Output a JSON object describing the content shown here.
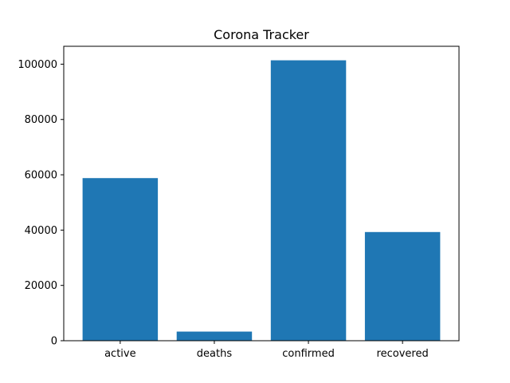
{
  "chart_data": {
    "type": "bar",
    "title": "Corona Tracker",
    "xlabel": "",
    "ylabel": "",
    "categories": [
      "active",
      "deaths",
      "confirmed",
      "recovered"
    ],
    "values": [
      58800,
      3300,
      101400,
      39300
    ],
    "ylim": [
      0,
      106470
    ],
    "yticks": [
      0,
      20000,
      40000,
      60000,
      80000,
      100000
    ],
    "ytick_labels": [
      "0",
      "20000",
      "40000",
      "60000",
      "80000",
      "100000"
    ],
    "grid": false,
    "legend": "none",
    "bar_color": "#1f77b4"
  }
}
